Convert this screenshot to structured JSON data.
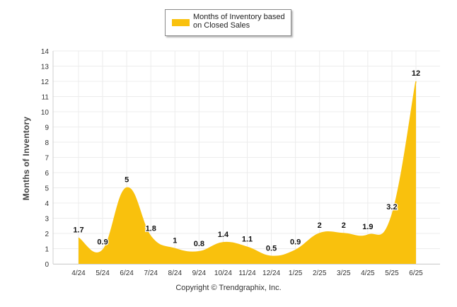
{
  "chart_data": {
    "type": "area",
    "title": "",
    "xlabel": "",
    "ylabel": "Months of Inventory",
    "categories": [
      "4/24",
      "5/24",
      "6/24",
      "7/24",
      "8/24",
      "9/24",
      "10/24",
      "11/24",
      "12/24",
      "1/25",
      "2/25",
      "3/25",
      "4/25",
      "5/25",
      "6/25"
    ],
    "series": [
      {
        "name": "Months of Inventory based on Closed Sales",
        "values": [
          1.7,
          0.9,
          5,
          1.8,
          1,
          0.8,
          1.4,
          1.1,
          0.5,
          0.9,
          2,
          2,
          1.9,
          3.2,
          12
        ],
        "labels": [
          "1.7",
          "0.9",
          "5",
          "1.8",
          "1",
          "0.8",
          "1.4",
          "1.1",
          "0.5",
          "0.9",
          "2",
          "2",
          "1.9",
          "3.2",
          "12"
        ],
        "color": "#F9C10D"
      }
    ],
    "ylim": [
      0,
      14
    ],
    "yticks": [
      "0",
      "1",
      "2",
      "3",
      "4",
      "5",
      "6",
      "7",
      "8",
      "9",
      "10",
      "11",
      "12",
      "13",
      "14"
    ],
    "grid": true,
    "legend": "top-center"
  },
  "legend": {
    "label": "Months of Inventory based\non Closed Sales"
  },
  "footer": {
    "copyright": "Copyright © Trendgraphix, Inc."
  },
  "colors": {
    "series": "#F9C10D",
    "grid": "#ececec"
  }
}
